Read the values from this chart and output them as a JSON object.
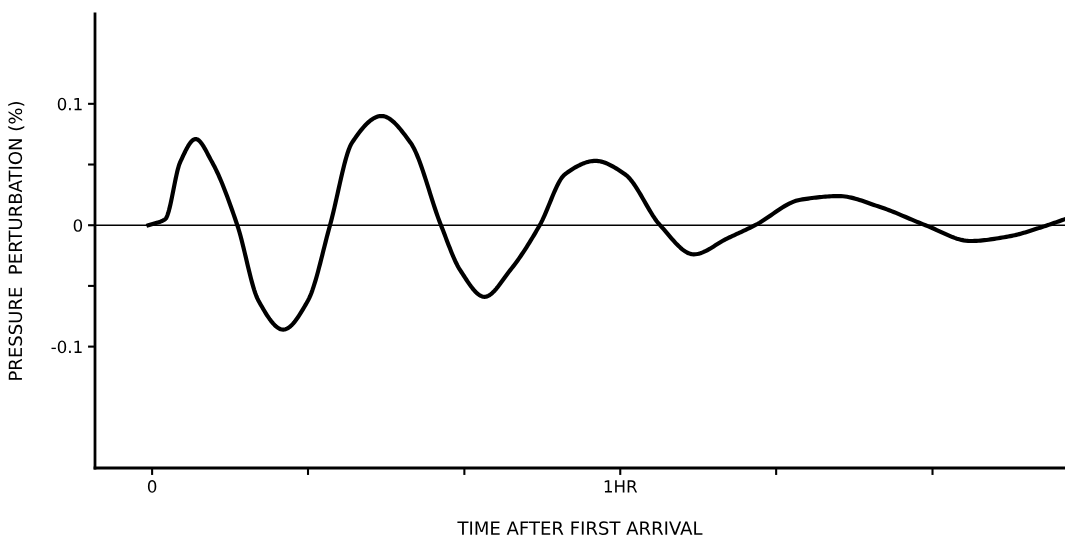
{
  "chart_data": {
    "type": "line",
    "xlabel": "TIME AFTER FIRST ARRIVAL",
    "ylabel": "PRESSURE  PERTURBATION (%)",
    "x": [
      -0.008,
      0.028,
      0.06,
      0.093,
      0.128,
      0.182,
      0.227,
      0.28,
      0.333,
      0.38,
      0.427,
      0.49,
      0.552,
      0.617,
      0.658,
      0.71,
      0.765,
      0.828,
      0.882,
      0.947,
      1.01,
      1.085,
      1.157,
      1.228,
      1.288,
      1.385,
      1.467,
      1.555,
      1.652,
      1.748,
      1.833,
      1.897,
      1.95
    ],
    "series": [
      {
        "color": "#000000",
        "values": [
          0,
          0.005,
          0.052,
          0.071,
          0.052,
          0,
          -0.062,
          -0.086,
          -0.062,
          0,
          0.068,
          0.09,
          0.068,
          0,
          -0.037,
          -0.059,
          -0.037,
          0,
          0.042,
          0.053,
          0.042,
          0,
          -0.024,
          -0.011,
          0,
          0.021,
          0.024,
          0.015,
          0,
          -0.013,
          -0.009,
          -0.002,
          0.005
        ]
      }
    ],
    "xlim": [
      -0.122,
      1.95
    ],
    "ylim": [
      -0.2,
      0.174
    ],
    "xticks": [
      0,
      {
        "value": 0.333,
        "label": null
      },
      {
        "value": 0.667,
        "label": null
      },
      {
        "value": 1,
        "label": "1HR"
      },
      {
        "value": 1.333,
        "label": null
      },
      {
        "value": 1.667,
        "label": null
      }
    ],
    "yticks": [
      {
        "value": -0.1,
        "label": "-0.1"
      },
      {
        "value": -0.05,
        "label": null
      },
      {
        "value": 0,
        "label": "0"
      },
      {
        "value": 0.05,
        "label": null
      },
      {
        "value": 0.1,
        "label": "0.1"
      }
    ],
    "ref_lines": [
      {
        "axis": "y",
        "value": 0,
        "color": "#000000"
      }
    ],
    "grid": false,
    "legend": false,
    "marker": "none",
    "line_style": "solid"
  }
}
